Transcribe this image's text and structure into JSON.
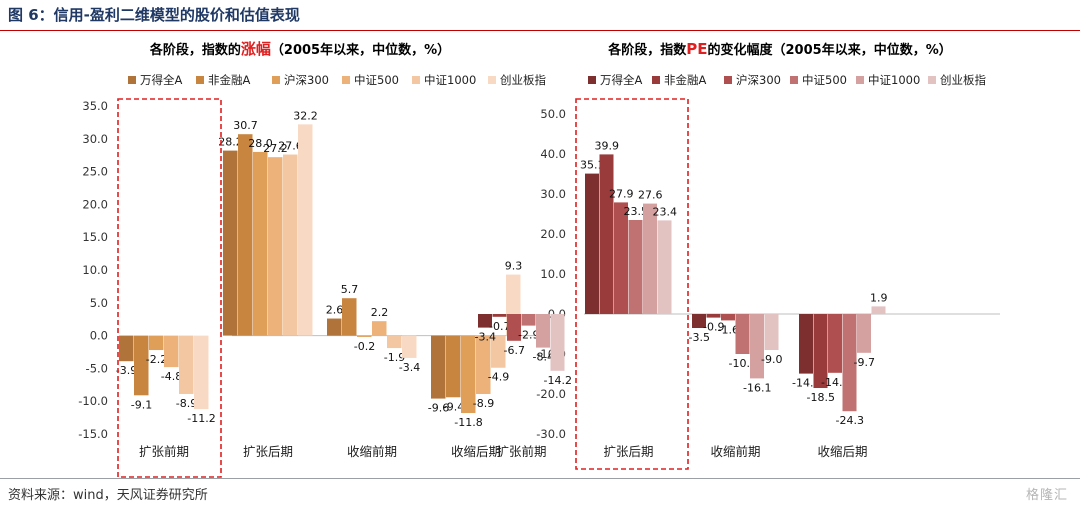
{
  "page": {
    "title": "图 6：信用-盈利二维模型的股价和估值表现",
    "source": "资料来源：wind，天风证券研究所",
    "watermark": "格隆汇"
  },
  "chart_data": [
    {
      "type": "bar",
      "title": {
        "prefix": "各阶段，指数的",
        "highlight": "涨幅",
        "suffix": "（2005年以来，中位数，%）"
      },
      "categories": [
        "扩张前期",
        "扩张后期",
        "收缩前期",
        "收缩后期"
      ],
      "series": [
        {
          "name": "万得全A",
          "color": "#b0733a",
          "values": [
            -3.9,
            28.2,
            2.6,
            -9.6
          ]
        },
        {
          "name": "非金融A",
          "color": "#c8853f",
          "values": [
            -9.1,
            30.7,
            5.7,
            -9.4
          ]
        },
        {
          "name": "沪深300",
          "color": "#e09f58",
          "values": [
            -2.2,
            28.0,
            -0.2,
            -11.8
          ]
        },
        {
          "name": "中证500",
          "color": "#edb27a",
          "values": [
            -4.8,
            27.2,
            2.2,
            -8.9
          ]
        },
        {
          "name": "中证1000",
          "color": "#f3c7a2",
          "values": [
            -8.9,
            27.6,
            -1.9,
            -4.9
          ]
        },
        {
          "name": "创业板指",
          "color": "#f8d9c4",
          "values": [
            -11.2,
            32.2,
            -3.4,
            9.3
          ]
        }
      ],
      "ylim": [
        -15,
        35
      ],
      "yticks": [
        "35.0",
        "30.0",
        "25.0",
        "20.0",
        "15.0",
        "10.0",
        "5.0",
        "0.0",
        "-5.0",
        "-10.0",
        "-15.0"
      ],
      "highlight_category": "扩张前期",
      "highlight_color": "#e02020",
      "grid": false,
      "legend": "top"
    },
    {
      "type": "bar",
      "title": {
        "prefix": "各阶段，指数",
        "highlight": "PE",
        "suffix": "的变化幅度（2005年以来，中位数，%）"
      },
      "categories": [
        "扩张前期",
        "扩张后期",
        "收缩前期",
        "收缩后期"
      ],
      "series": [
        {
          "name": "万得全A",
          "color": "#7d2f2f",
          "values": [
            -3.4,
            35.1,
            -3.5,
            -14.9
          ]
        },
        {
          "name": "非金融A",
          "color": "#9a3b3b",
          "values": [
            -0.7,
            39.9,
            -0.9,
            -18.5
          ]
        },
        {
          "name": "沪深300",
          "color": "#b04f4f",
          "values": [
            -6.7,
            27.9,
            -1.6,
            -14.7
          ]
        },
        {
          "name": "中证500",
          "color": "#c07272",
          "values": [
            -2.9,
            23.5,
            -10.0,
            -24.3
          ]
        },
        {
          "name": "中证1000",
          "color": "#d4a0a0",
          "values": [
            -8.4,
            27.6,
            -16.1,
            -9.7
          ]
        },
        {
          "name": "创业板指",
          "color": "#e3c2c2",
          "values": [
            -14.2,
            23.4,
            -9.0,
            1.9
          ]
        }
      ],
      "ylim": [
        -30,
        50
      ],
      "yticks": [
        "50.0",
        "40.0",
        "30.0",
        "20.0",
        "10.0",
        "0.0",
        "-10.0",
        "-20.0",
        "-30.0"
      ],
      "highlight_category": "扩张前期",
      "highlight_color": "#e02020",
      "grid": false,
      "legend": "top"
    }
  ]
}
